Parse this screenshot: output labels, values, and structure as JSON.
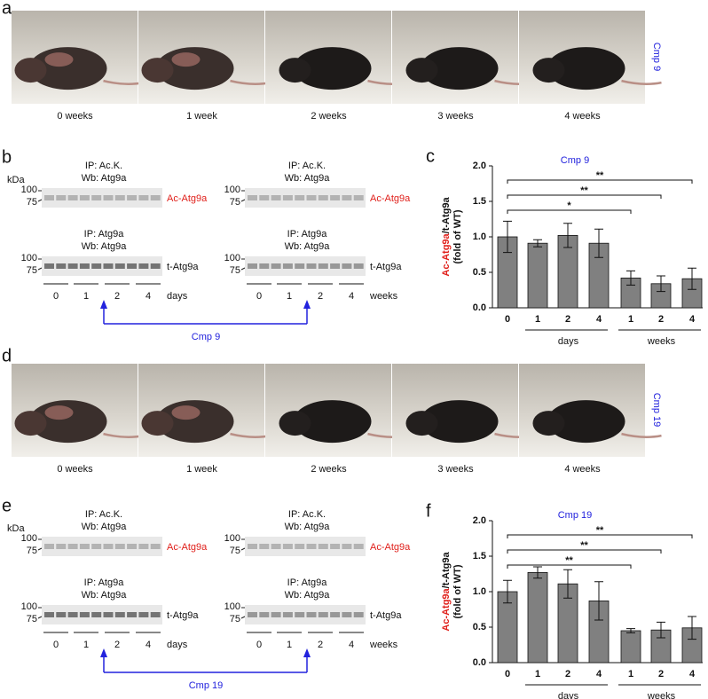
{
  "panels": {
    "a": {
      "label": "a",
      "captions": [
        "0 weeks",
        "1 week",
        "2 weeks",
        "3 weeks",
        "4 weeks"
      ],
      "compound": "Cmp 9"
    },
    "b": {
      "label": "b",
      "kda": "kDa",
      "markers": [
        "100",
        "75"
      ],
      "blots": [
        {
          "ip": "IP: Ac.K.",
          "wb": "Wb: Atg9a",
          "band": "Ac-Atg9a"
        },
        {
          "ip": "IP: Atg9a",
          "wb": "Wb: Atg9a",
          "band": "t-Atg9a"
        }
      ],
      "groups": [
        "0",
        "1",
        "2",
        "4"
      ],
      "unit_left": "days",
      "unit_right": "weeks",
      "arrow": "Cmp 9"
    },
    "d": {
      "label": "d",
      "captions": [
        "0 weeks",
        "1 week",
        "2 weeks",
        "3 weeks",
        "4 weeks"
      ],
      "compound": "Cmp 19"
    },
    "e": {
      "label": "e",
      "kda": "kDa",
      "markers": [
        "100",
        "75"
      ],
      "blots": [
        {
          "ip": "IP: Ac.K.",
          "wb": "Wb: Atg9a",
          "band": "Ac-Atg9a"
        },
        {
          "ip": "IP: Atg9a",
          "wb": "Wb: Atg9a",
          "band": "t-Atg9a"
        }
      ],
      "groups": [
        "0",
        "1",
        "2",
        "4"
      ],
      "unit_left": "days",
      "unit_right": "weeks",
      "arrow": "Cmp 19"
    }
  },
  "chart_data": [
    {
      "type": "bar",
      "label": "c",
      "title": "Cmp 9",
      "y_label": [
        "Ac-Atg9a",
        "/t-Atg9a"
      ],
      "y_label_2": "(fold of WT)",
      "categories": [
        "0",
        "1",
        "2",
        "4",
        "1",
        "2",
        "4"
      ],
      "groups": [
        "days",
        "weeks"
      ],
      "values": [
        1.0,
        0.91,
        1.02,
        0.91,
        0.42,
        0.34,
        0.41
      ],
      "errors": [
        0.22,
        0.05,
        0.17,
        0.2,
        0.1,
        0.11,
        0.15
      ],
      "significance": [
        "*",
        "**",
        "**"
      ],
      "color": "#808080",
      "ylim": [
        0,
        2
      ],
      "yticks": [
        {
          "value": 0,
          "label": "0.0"
        },
        0.5,
        {
          "value": 1,
          "label": "1.0"
        },
        1.5,
        {
          "value": 2,
          "label": "2.0"
        }
      ]
    },
    {
      "type": "bar",
      "label": "f",
      "title": "Cmp 19",
      "y_label": [
        "Ac-Atg9a",
        "/t-Atg9a"
      ],
      "y_label_2": "(fold of WT)",
      "categories": [
        "0",
        "1",
        "2",
        "4",
        "1",
        "2",
        "4"
      ],
      "groups": [
        "days",
        "weeks"
      ],
      "values": [
        1.0,
        1.27,
        1.11,
        0.87,
        0.45,
        0.46,
        0.49
      ],
      "errors": [
        0.16,
        0.08,
        0.2,
        0.27,
        0.03,
        0.11,
        0.16
      ],
      "significance": [
        "**",
        "**",
        "**"
      ],
      "color": "#808080",
      "ylim": [
        0,
        2
      ],
      "yticks": [
        {
          "value": 0,
          "label": "0.0"
        },
        0.5,
        {
          "value": 1,
          "label": "1.0"
        },
        1.5,
        {
          "value": 2,
          "label": "2.0"
        }
      ]
    }
  ]
}
